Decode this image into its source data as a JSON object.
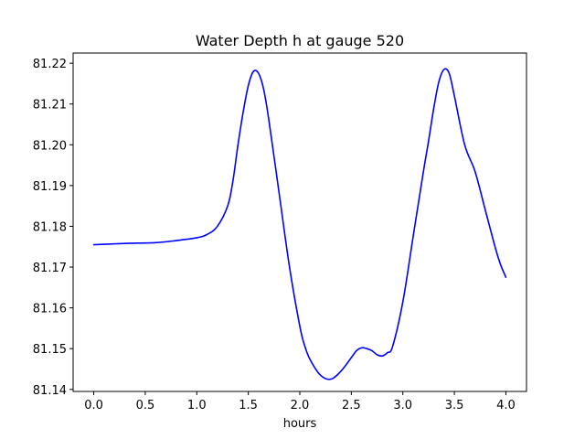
{
  "chart_data": {
    "type": "line",
    "title": "Water Depth h at gauge 520",
    "xlabel": "hours",
    "ylabel": "",
    "xlim": [
      -0.2,
      4.2
    ],
    "ylim": [
      81.1395,
      81.2225
    ],
    "grid": false,
    "x_ticks": [
      0.0,
      0.5,
      1.0,
      1.5,
      2.0,
      2.5,
      3.0,
      3.5,
      4.0
    ],
    "x_tick_labels": [
      "0.0",
      "0.5",
      "1.0",
      "1.5",
      "2.0",
      "2.5",
      "3.0",
      "3.5",
      "4.0"
    ],
    "y_ticks": [
      81.14,
      81.15,
      81.16,
      81.17,
      81.18,
      81.19,
      81.2,
      81.21,
      81.22
    ],
    "y_tick_labels": [
      "81.14",
      "81.15",
      "81.16",
      "81.17",
      "81.18",
      "81.19",
      "81.20",
      "81.21",
      "81.22"
    ],
    "series": [
      {
        "color": "#0000ff",
        "x": [
          0.0,
          0.3,
          0.6,
          0.8,
          1.0,
          1.1,
          1.2,
          1.3,
          1.35,
          1.4,
          1.45,
          1.5,
          1.55,
          1.6,
          1.65,
          1.7,
          1.8,
          1.9,
          2.0,
          2.05,
          2.1,
          2.2,
          2.3,
          2.4,
          2.5,
          2.55,
          2.6,
          2.65,
          2.7,
          2.75,
          2.8,
          2.85,
          2.9,
          3.0,
          3.1,
          3.2,
          3.25,
          3.3,
          3.35,
          3.4,
          3.45,
          3.5,
          3.6,
          3.7,
          3.8,
          3.9,
          3.95,
          4.0
        ],
        "y": [
          81.1755,
          81.1758,
          81.176,
          81.1765,
          81.1772,
          81.178,
          81.18,
          81.185,
          81.191,
          81.2,
          81.208,
          81.2145,
          81.218,
          81.2175,
          81.2135,
          81.206,
          81.188,
          81.17,
          81.1555,
          81.1505,
          81.1473,
          81.1435,
          81.1425,
          81.1445,
          81.1478,
          81.1495,
          81.1502,
          81.15,
          81.1495,
          81.1485,
          81.1482,
          81.149,
          81.1505,
          81.1615,
          81.1775,
          81.1935,
          81.201,
          81.209,
          81.2155,
          81.2185,
          81.2175,
          81.212,
          81.2,
          81.1935,
          81.184,
          81.1745,
          81.1705,
          81.1675
        ]
      }
    ]
  }
}
